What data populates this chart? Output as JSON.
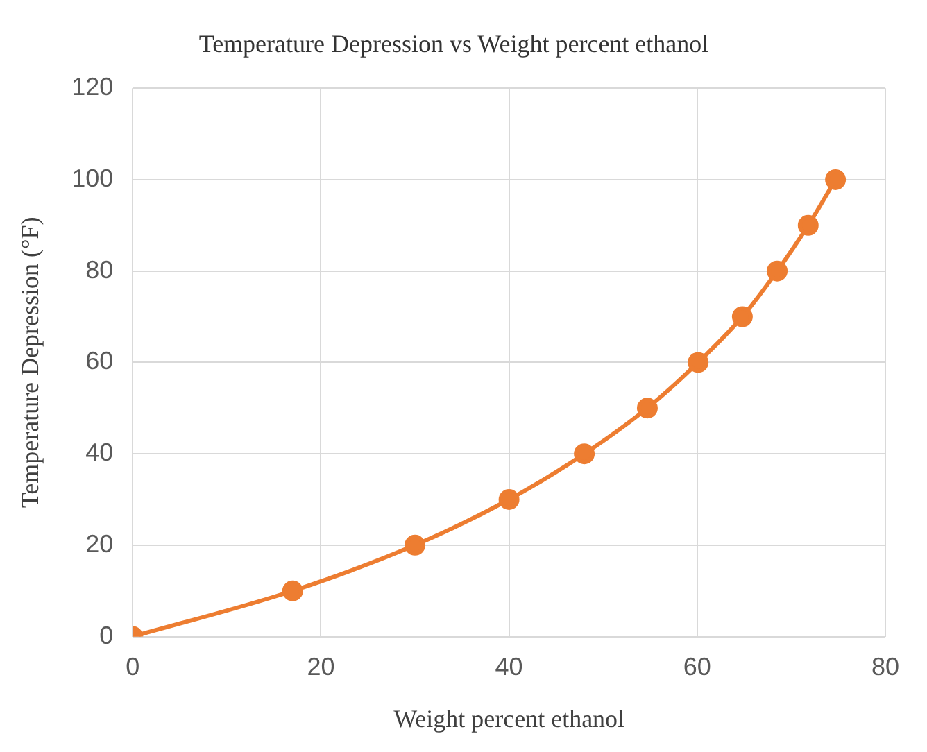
{
  "chart_data": {
    "type": "line",
    "title": "Temperature Depression vs Weight percent ethanol",
    "xlabel": "Weight percent ethanol",
    "ylabel": "Temperature Depression (°F)",
    "x": [
      0,
      17,
      30,
      40,
      48,
      54.7,
      60.1,
      64.8,
      68.5,
      71.8,
      74.7
    ],
    "series": [
      {
        "color": "#ed7d31",
        "values": [
          0,
          10,
          20,
          30,
          40,
          50,
          60,
          70,
          80,
          90,
          100
        ]
      }
    ],
    "xlim": [
      0,
      80
    ],
    "xticks": [
      0,
      20,
      40,
      60,
      80
    ],
    "ylim": [
      0,
      120
    ],
    "yticks": [
      0,
      20,
      40,
      60,
      80,
      100,
      120
    ],
    "grid": true,
    "legend": false,
    "marker": "circle",
    "line_style": "solid"
  }
}
